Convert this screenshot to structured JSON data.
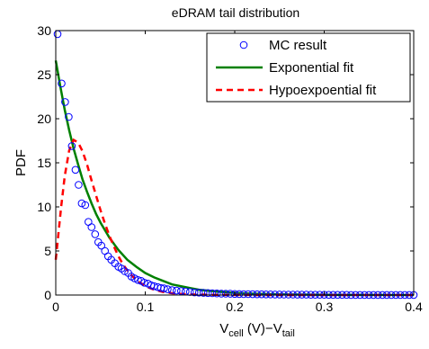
{
  "chart_data": {
    "type": "line",
    "title": "eDRAM tail distribution",
    "ylabel": "PDF",
    "xlabel": {
      "main": "V",
      "sub1": "cell",
      "mid": " (V)−V",
      "sub2": "tail"
    },
    "xlim": [
      0,
      0.4
    ],
    "ylim": [
      0,
      30
    ],
    "xticks": [
      0,
      0.1,
      0.2,
      0.3,
      0.4
    ],
    "xtick_labels": [
      "0",
      "0.1",
      "0.2",
      "0.3",
      "0.4"
    ],
    "yticks": [
      0,
      5,
      10,
      15,
      20,
      25,
      30
    ],
    "ytick_labels": [
      "0",
      "5",
      "10",
      "15",
      "20",
      "25",
      "30"
    ],
    "grid": false,
    "legend_position": "top-right",
    "series": [
      {
        "name": "MC result",
        "style": "circles",
        "color": "#0000ff",
        "x": [
          0.002,
          0.0065,
          0.0105,
          0.0145,
          0.018,
          0.022,
          0.0255,
          0.029,
          0.033,
          0.0365,
          0.04,
          0.044,
          0.0475,
          0.051,
          0.055,
          0.0585,
          0.062,
          0.066,
          0.07,
          0.0735,
          0.077,
          0.081,
          0.0845,
          0.088,
          0.092,
          0.0955,
          0.099,
          0.103,
          0.1065,
          0.11,
          0.114,
          0.1175,
          0.121,
          0.125,
          0.13,
          0.135,
          0.14,
          0.145,
          0.15,
          0.155,
          0.16,
          0.165,
          0.17,
          0.175,
          0.18,
          0.185,
          0.19,
          0.195,
          0.2,
          0.205,
          0.21,
          0.215,
          0.22,
          0.225,
          0.23,
          0.235,
          0.24,
          0.245,
          0.25,
          0.255,
          0.26,
          0.265,
          0.27,
          0.275,
          0.28,
          0.285,
          0.29,
          0.295,
          0.3,
          0.305,
          0.31,
          0.315,
          0.32,
          0.325,
          0.33,
          0.335,
          0.34,
          0.345,
          0.35,
          0.355,
          0.36,
          0.365,
          0.37,
          0.375,
          0.38,
          0.385,
          0.39,
          0.395,
          0.4
        ],
        "y": [
          29.6,
          24.0,
          21.9,
          20.2,
          16.9,
          14.2,
          12.5,
          10.4,
          10.2,
          8.3,
          7.7,
          6.9,
          6.0,
          5.6,
          5.0,
          4.4,
          4.0,
          3.6,
          3.2,
          3.0,
          2.7,
          2.5,
          2.1,
          1.9,
          1.7,
          1.6,
          1.4,
          1.3,
          1.1,
          1.0,
          0.9,
          0.8,
          0.75,
          0.65,
          0.55,
          0.5,
          0.45,
          0.4,
          0.35,
          0.3,
          0.28,
          0.25,
          0.22,
          0.2,
          0.18,
          0.16,
          0.15,
          0.14,
          0.12,
          0.11,
          0.1,
          0.1,
          0.09,
          0.08,
          0.08,
          0.07,
          0.07,
          0.06,
          0.06,
          0.05,
          0.05,
          0.05,
          0.04,
          0.04,
          0.04,
          0.03,
          0.03,
          0.03,
          0.03,
          0.02,
          0.02,
          0.02,
          0.02,
          0.02,
          0.01,
          0.01,
          0.01,
          0.01,
          0.01,
          0.01,
          0.01,
          0.01,
          0.01,
          0.01,
          0.01,
          0.01,
          0.01,
          0.01,
          0.01
        ]
      },
      {
        "name": "Exponential fit",
        "style": "solid",
        "color": "#008000",
        "x": [
          0.0,
          0.005,
          0.01,
          0.015,
          0.02,
          0.025,
          0.03,
          0.035,
          0.04,
          0.045,
          0.05,
          0.06,
          0.07,
          0.08,
          0.09,
          0.1,
          0.11,
          0.12,
          0.13,
          0.14,
          0.15,
          0.16,
          0.18,
          0.2,
          0.22,
          0.25,
          0.3,
          0.35,
          0.4
        ],
        "y": [
          26.6,
          23.7,
          21.0,
          18.7,
          16.6,
          14.8,
          13.1,
          11.7,
          10.4,
          9.2,
          8.2,
          6.5,
          5.1,
          4.0,
          3.2,
          2.5,
          2.0,
          1.6,
          1.2,
          1.0,
          0.8,
          0.6,
          0.4,
          0.25,
          0.15,
          0.07,
          0.02,
          0.01,
          0.0
        ]
      },
      {
        "name": "Hypoexpoential fit",
        "style": "dashed",
        "color": "#ff0000",
        "x": [
          0.0,
          0.003,
          0.006,
          0.01,
          0.015,
          0.02,
          0.025,
          0.03,
          0.035,
          0.04,
          0.045,
          0.05,
          0.055,
          0.06,
          0.065,
          0.07,
          0.075,
          0.08,
          0.085,
          0.09,
          0.1,
          0.11,
          0.12,
          0.13,
          0.14,
          0.15,
          0.17,
          0.2,
          0.25,
          0.3,
          0.35,
          0.4
        ],
        "y": [
          4.0,
          7.0,
          10.0,
          13.5,
          16.4,
          17.6,
          17.3,
          16.3,
          14.8,
          13.0,
          11.3,
          9.6,
          8.1,
          6.7,
          5.5,
          4.4,
          3.5,
          2.8,
          2.2,
          1.7,
          1.0,
          0.6,
          0.35,
          0.2,
          0.12,
          0.07,
          0.03,
          0.01,
          0.0,
          0.0,
          0.0,
          0.0
        ]
      }
    ]
  }
}
